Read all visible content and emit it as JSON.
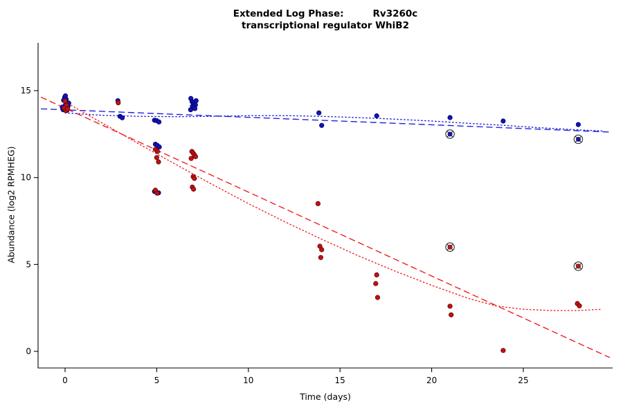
{
  "title": {
    "line1_left": "Extended Log Phase:",
    "line1_right": "Rv3260c",
    "line2": "transcriptional regulator WhiB2"
  },
  "axes": {
    "x_label": "Time  (days)",
    "y_label": "Abundance  (log2 RPMHEG)",
    "x_ticks": [
      0,
      5,
      10,
      15,
      20,
      25
    ],
    "y_ticks": [
      0,
      5,
      10,
      15
    ]
  },
  "colors": {
    "blue_points": "#1212bb",
    "blue_stroke": "#050560",
    "red_points": "#c41111",
    "red_stroke": "#600505",
    "blue_line": "#2020dd",
    "red_line": "#ee2020",
    "circle_marker": "#2a2a2a"
  },
  "chart_data": {
    "type": "scatter",
    "title": "Extended Log Phase: Rv3260c transcriptional regulator WhiB2",
    "xlabel": "Time (days)",
    "ylabel": "Abundance (log2 RPMHEG)",
    "xlim": [
      -1.5,
      29.9
    ],
    "ylim": [
      -0.95,
      17.7
    ],
    "grid": false,
    "legend": "none",
    "series": [
      {
        "name": "blue-condition-points",
        "color_key": "blue_points",
        "stroke_key": "blue_stroke",
        "points": [
          [
            -0.15,
            14.05
          ],
          [
            -0.08,
            14.45
          ],
          [
            -0.02,
            14.62
          ],
          [
            0.02,
            14.7
          ],
          [
            0.06,
            14.5
          ],
          [
            0.1,
            14.33
          ],
          [
            0.03,
            14.2
          ],
          [
            0.0,
            13.95
          ],
          [
            0.1,
            13.86
          ],
          [
            0.16,
            14.1
          ],
          [
            -0.1,
            13.9
          ],
          [
            0.2,
            14.28
          ],
          [
            2.88,
            14.42
          ],
          [
            3.0,
            13.52
          ],
          [
            3.12,
            13.44
          ],
          [
            4.88,
            13.3
          ],
          [
            5.0,
            13.27
          ],
          [
            5.12,
            13.2
          ],
          [
            4.93,
            11.92
          ],
          [
            5.03,
            11.85
          ],
          [
            5.14,
            11.76
          ],
          [
            4.88,
            9.2
          ],
          [
            5.1,
            9.12
          ],
          [
            6.86,
            14.55
          ],
          [
            6.93,
            14.36
          ],
          [
            6.99,
            14.3
          ],
          [
            7.05,
            14.24
          ],
          [
            7.11,
            14.18
          ],
          [
            6.95,
            14.1
          ],
          [
            7.02,
            14.04
          ],
          [
            7.08,
            13.97
          ],
          [
            7.15,
            14.42
          ],
          [
            6.85,
            13.9
          ],
          [
            13.85,
            13.72
          ],
          [
            14.0,
            13.0
          ],
          [
            17.0,
            13.55
          ],
          [
            21.0,
            13.45
          ],
          [
            23.9,
            13.25
          ],
          [
            28.0,
            13.05
          ]
        ]
      },
      {
        "name": "red-condition-points",
        "color_key": "red_points",
        "stroke_key": "red_stroke",
        "points": [
          [
            0.0,
            14.4
          ],
          [
            0.08,
            14.15
          ],
          [
            -0.05,
            14.0
          ],
          [
            0.05,
            13.85
          ],
          [
            0.14,
            13.95
          ],
          [
            2.9,
            14.3
          ],
          [
            4.93,
            11.62
          ],
          [
            5.04,
            11.5
          ],
          [
            5.0,
            11.15
          ],
          [
            5.1,
            10.9
          ],
          [
            4.93,
            9.27
          ],
          [
            5.02,
            9.1
          ],
          [
            6.92,
            11.5
          ],
          [
            6.99,
            11.4
          ],
          [
            7.06,
            11.3
          ],
          [
            7.12,
            11.2
          ],
          [
            6.88,
            11.1
          ],
          [
            6.99,
            10.05
          ],
          [
            7.06,
            9.95
          ],
          [
            6.94,
            9.45
          ],
          [
            7.01,
            9.33
          ],
          [
            13.8,
            8.5
          ],
          [
            13.9,
            6.05
          ],
          [
            14.0,
            5.85
          ],
          [
            13.95,
            5.4
          ],
          [
            17.0,
            4.4
          ],
          [
            16.95,
            3.9
          ],
          [
            17.05,
            3.1
          ],
          [
            21.0,
            2.6
          ],
          [
            21.06,
            2.1
          ],
          [
            23.9,
            0.05
          ],
          [
            27.95,
            2.75
          ],
          [
            28.06,
            2.62
          ]
        ]
      }
    ],
    "flagged_points": [
      {
        "x": 21.0,
        "y": 12.5,
        "color_key": "blue_points"
      },
      {
        "x": 21.0,
        "y": 6.0,
        "color_key": "red_points"
      },
      {
        "x": 28.0,
        "y": 12.2,
        "color_key": "blue_points"
      },
      {
        "x": 28.0,
        "y": 4.9,
        "color_key": "red_points"
      }
    ],
    "lines": [
      {
        "name": "blue-dashed-linear-fit",
        "color_key": "blue_line",
        "style": "dashed",
        "points": [
          [
            -1.3,
            13.95
          ],
          [
            29.7,
            12.62
          ]
        ]
      },
      {
        "name": "blue-dotted-smooth-fit",
        "color_key": "blue_line",
        "style": "dotted",
        "points": [
          [
            0,
            13.72
          ],
          [
            2,
            13.58
          ],
          [
            4,
            13.52
          ],
          [
            6,
            13.5
          ],
          [
            8,
            13.52
          ],
          [
            10,
            13.56
          ],
          [
            12,
            13.56
          ],
          [
            14,
            13.52
          ],
          [
            16,
            13.45
          ],
          [
            18,
            13.36
          ],
          [
            20,
            13.25
          ],
          [
            22,
            13.12
          ],
          [
            24,
            13.0
          ],
          [
            26,
            12.86
          ],
          [
            28,
            12.74
          ],
          [
            29.3,
            12.68
          ]
        ]
      },
      {
        "name": "red-dashed-linear-fit",
        "color_key": "red_line",
        "style": "dashed",
        "points": [
          [
            -1.3,
            14.62
          ],
          [
            29.7,
            -0.35
          ]
        ]
      },
      {
        "name": "red-dotted-smooth-fit",
        "color_key": "red_line",
        "style": "dotted",
        "points": [
          [
            0,
            14.35
          ],
          [
            2,
            13.15
          ],
          [
            4,
            11.95
          ],
          [
            6,
            10.78
          ],
          [
            8,
            9.62
          ],
          [
            10,
            8.5
          ],
          [
            12,
            7.45
          ],
          [
            14,
            6.45
          ],
          [
            16,
            5.5
          ],
          [
            18,
            4.62
          ],
          [
            20,
            3.8
          ],
          [
            22,
            3.05
          ],
          [
            23.5,
            2.62
          ],
          [
            25,
            2.42
          ],
          [
            26.5,
            2.35
          ],
          [
            28,
            2.35
          ],
          [
            29.3,
            2.42
          ]
        ]
      }
    ]
  }
}
